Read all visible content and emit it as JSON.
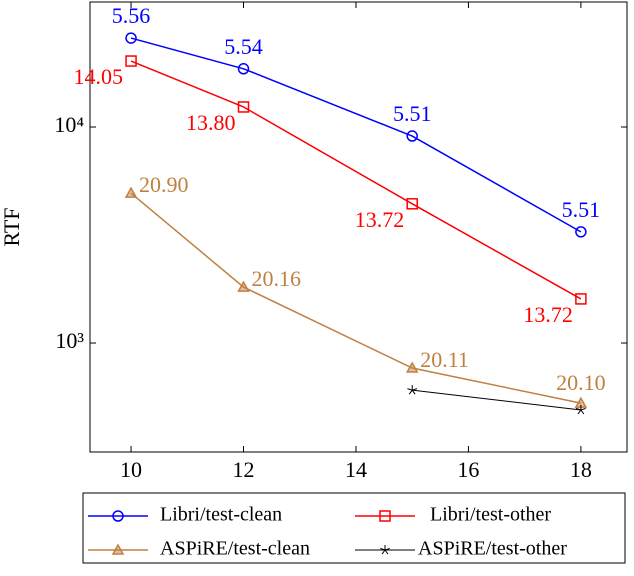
{
  "chart_data": {
    "type": "line",
    "ylabel": "RTF",
    "log_y": true,
    "xlim": [
      9.27,
      18.82
    ],
    "xticks": [
      10,
      12,
      14,
      16,
      18
    ],
    "ylim": [
      313,
      37900
    ],
    "yticks": [
      {
        "value": 1000,
        "label": "10³"
      },
      {
        "value": 10000,
        "label": "10⁴"
      }
    ],
    "series": [
      {
        "name": "Libri/test-clean",
        "color": "#0000ff",
        "marker": "circle",
        "x": [
          10,
          12,
          15,
          18
        ],
        "values": [
          25800,
          18600,
          9080,
          3270
        ],
        "labels": [
          "5.56",
          "5.54",
          "5.51",
          "5.51"
        ]
      },
      {
        "name": "Libri/test-other",
        "color": "#ff0000",
        "marker": "square",
        "x": [
          10,
          12,
          15,
          18
        ],
        "values": [
          20200,
          12380,
          4410,
          1600
        ],
        "labels": [
          "14.05",
          "13.80",
          "13.72",
          "13.72"
        ]
      },
      {
        "name": "ASPiRE/test-clean",
        "color": "#c08040",
        "marker": "triangle",
        "x": [
          10,
          12,
          15,
          18
        ],
        "values": [
          4940,
          1815,
          766,
          527
        ],
        "labels": [
          "20.90",
          "20.16",
          "20.11",
          "20.10"
        ]
      },
      {
        "name": "ASPiRE/test-other",
        "color": "#000000",
        "marker": "star",
        "x": [
          15,
          18
        ],
        "values": [
          605,
          490
        ]
      }
    ]
  }
}
